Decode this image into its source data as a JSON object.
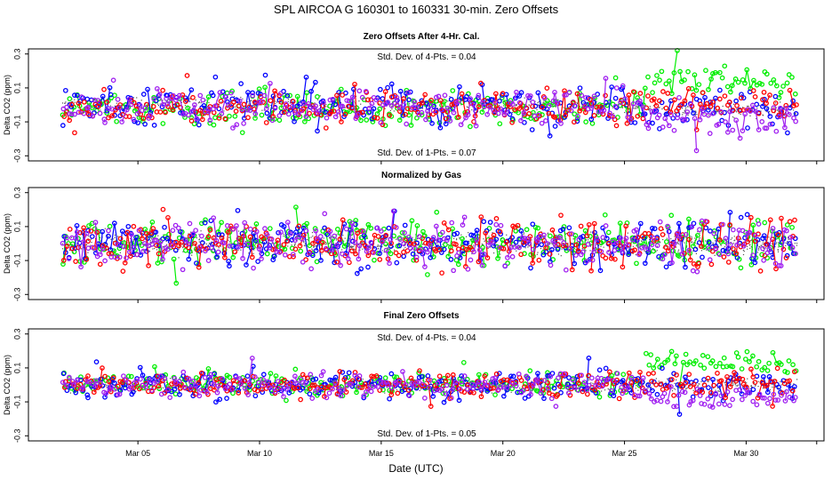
{
  "chart_data": {
    "type": "scatter",
    "title": "SPL   AIRCOA G   160301 to 160331   30-min. Zero Offsets",
    "xlabel": "Date (UTC)",
    "x_range_days": [
      0.5,
      33.2
    ],
    "x_ticks": [
      {
        "day": 5,
        "label": "Mar 05"
      },
      {
        "day": 10,
        "label": "Mar 10"
      },
      {
        "day": 15,
        "label": "Mar 15"
      },
      {
        "day": 20,
        "label": "Mar 20"
      },
      {
        "day": 25,
        "label": "Mar 25"
      },
      {
        "day": 30,
        "label": "Mar 30"
      }
    ],
    "y_ticks": [
      {
        "value": 0.3,
        "label": "0.3"
      },
      {
        "value": 0.1,
        "label": "0.1"
      },
      {
        "value": -0.1,
        "label": "-0.1"
      },
      {
        "value": -0.3,
        "label": "-0.3"
      }
    ],
    "series_colors": {
      "gas_1": "#00ee00",
      "gas_2": "#0000ff",
      "gas_3": "#ff0000",
      "gas_4": "#a020f0",
      "raw": "#000000"
    },
    "panels": [
      {
        "title": "Zero Offsets After 4-Hr. Cal.",
        "ylabel": "Delta CO2 (ppm)",
        "ylim": [
          -0.33,
          0.33
        ],
        "annotation_top": "Std. Dev. of 4-Pts. = 0.04",
        "annotation_bottom": "Std. Dev. of 1-Pts. = 0.07",
        "x_start_day": 1.9,
        "x_end_day": 32.1,
        "series": [
          {
            "name": "gas_1",
            "color": "#00ee00",
            "level_before": -0.02,
            "level_after": 0.14,
            "spread": 0.05
          },
          {
            "name": "gas_2",
            "color": "#0000ff",
            "level_before": 0.0,
            "level_after": -0.02,
            "spread": 0.06
          },
          {
            "name": "gas_3",
            "color": "#ff0000",
            "level_before": -0.02,
            "level_after": 0.0,
            "spread": 0.05
          },
          {
            "name": "gas_4",
            "color": "#a020f0",
            "level_before": -0.01,
            "level_after": -0.08,
            "spread": 0.05
          }
        ]
      },
      {
        "title": "Normalized by Gas",
        "ylabel": "Delta CO2 (ppm)",
        "ylim": [
          -0.33,
          0.33
        ],
        "annotation_top": "",
        "annotation_bottom": "",
        "x_start_day": 1.9,
        "x_end_day": 32.1,
        "series": [
          {
            "name": "gas_1",
            "color": "#00ee00",
            "level_before": 0.0,
            "level_after": 0.0,
            "spread": 0.07
          },
          {
            "name": "gas_2",
            "color": "#0000ff",
            "level_before": 0.0,
            "level_after": 0.0,
            "spread": 0.07
          },
          {
            "name": "gas_3",
            "color": "#ff0000",
            "level_before": 0.0,
            "level_after": 0.0,
            "spread": 0.07
          },
          {
            "name": "gas_4",
            "color": "#a020f0",
            "level_before": 0.0,
            "level_after": 0.0,
            "spread": 0.07
          }
        ]
      },
      {
        "title": "Final Zero Offsets",
        "ylabel": "Delta CO2 (ppm)",
        "ylim": [
          -0.33,
          0.33
        ],
        "annotation_top": "Std. Dev. of 4-Pts. = 0.04",
        "annotation_bottom": "Std. Dev. of 1-Pts. = 0.05",
        "x_start_day": 1.9,
        "x_end_day": 32.1,
        "series": [
          {
            "name": "gas_1",
            "color": "#00ee00",
            "level_before": 0.0,
            "level_after": 0.13,
            "spread": 0.035
          },
          {
            "name": "gas_2",
            "color": "#0000ff",
            "level_before": 0.0,
            "level_after": 0.0,
            "spread": 0.04
          },
          {
            "name": "gas_3",
            "color": "#ff0000",
            "level_before": 0.0,
            "level_after": 0.0,
            "spread": 0.035
          },
          {
            "name": "gas_4",
            "color": "#a020f0",
            "level_before": 0.0,
            "level_after": -0.07,
            "spread": 0.035
          }
        ]
      }
    ],
    "regime_change_day": 25.8
  }
}
